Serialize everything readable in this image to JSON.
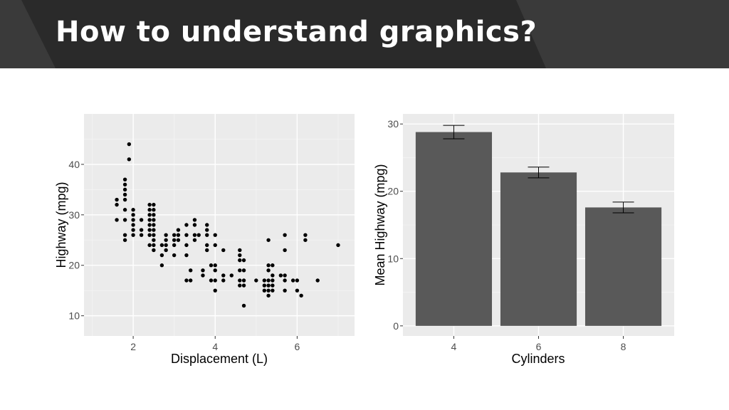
{
  "slide": {
    "title": "How to understand graphics?"
  },
  "colors": {
    "header_dark": "#2a2a2a",
    "header_mid": "#3a3a3a",
    "panel": "#ebebeb",
    "grid": "#ffffff",
    "point": "#000000",
    "bar": "#595959"
  },
  "chart_data": [
    {
      "type": "scatter",
      "xlabel": "Displacement (L)",
      "ylabel": "Highway (mpg)",
      "xlim": [
        0.8,
        7.4
      ],
      "ylim": [
        6,
        50
      ],
      "xticks": [
        2,
        4,
        6
      ],
      "yticks": [
        10,
        20,
        30,
        40
      ],
      "grid": true,
      "points": [
        [
          1.6,
          33
        ],
        [
          1.6,
          32
        ],
        [
          1.6,
          29
        ],
        [
          1.8,
          37
        ],
        [
          1.8,
          36
        ],
        [
          1.8,
          35
        ],
        [
          1.8,
          34
        ],
        [
          1.8,
          33
        ],
        [
          1.8,
          31
        ],
        [
          1.8,
          29
        ],
        [
          1.8,
          26
        ],
        [
          1.8,
          25
        ],
        [
          1.9,
          44
        ],
        [
          1.9,
          41
        ],
        [
          2.0,
          31
        ],
        [
          2.0,
          30
        ],
        [
          2.0,
          29
        ],
        [
          2.0,
          28
        ],
        [
          2.0,
          27
        ],
        [
          2.0,
          26
        ],
        [
          2.2,
          29
        ],
        [
          2.2,
          27
        ],
        [
          2.2,
          26
        ],
        [
          2.4,
          32
        ],
        [
          2.4,
          31
        ],
        [
          2.4,
          30
        ],
        [
          2.4,
          29
        ],
        [
          2.4,
          28
        ],
        [
          2.4,
          27
        ],
        [
          2.4,
          26
        ],
        [
          2.4,
          24
        ],
        [
          2.5,
          32
        ],
        [
          2.5,
          31
        ],
        [
          2.5,
          30
        ],
        [
          2.5,
          29
        ],
        [
          2.5,
          28
        ],
        [
          2.5,
          27
        ],
        [
          2.5,
          26
        ],
        [
          2.5,
          25
        ],
        [
          2.5,
          24
        ],
        [
          2.5,
          23
        ],
        [
          2.7,
          24
        ],
        [
          2.7,
          22
        ],
        [
          2.7,
          20
        ],
        [
          2.8,
          26
        ],
        [
          2.8,
          25
        ],
        [
          2.8,
          24
        ],
        [
          2.8,
          23
        ],
        [
          3.0,
          26
        ],
        [
          3.0,
          25
        ],
        [
          3.0,
          24
        ],
        [
          3.0,
          22
        ],
        [
          3.1,
          27
        ],
        [
          3.1,
          26
        ],
        [
          3.1,
          25
        ],
        [
          3.3,
          28
        ],
        [
          3.3,
          26
        ],
        [
          3.3,
          24
        ],
        [
          3.3,
          22
        ],
        [
          3.3,
          17
        ],
        [
          3.4,
          19
        ],
        [
          3.4,
          17
        ],
        [
          3.5,
          29
        ],
        [
          3.5,
          28
        ],
        [
          3.5,
          26
        ],
        [
          3.5,
          25
        ],
        [
          3.6,
          26
        ],
        [
          3.7,
          19
        ],
        [
          3.7,
          18
        ],
        [
          3.8,
          28
        ],
        [
          3.8,
          27
        ],
        [
          3.8,
          26
        ],
        [
          3.8,
          24
        ],
        [
          3.8,
          23
        ],
        [
          3.9,
          20
        ],
        [
          3.9,
          17
        ],
        [
          4.0,
          26
        ],
        [
          4.0,
          24
        ],
        [
          4.0,
          20
        ],
        [
          4.0,
          19
        ],
        [
          4.0,
          17
        ],
        [
          4.0,
          15
        ],
        [
          4.2,
          23
        ],
        [
          4.2,
          18
        ],
        [
          4.2,
          17
        ],
        [
          4.4,
          18
        ],
        [
          4.6,
          23
        ],
        [
          4.6,
          22
        ],
        [
          4.6,
          21
        ],
        [
          4.6,
          19
        ],
        [
          4.6,
          17
        ],
        [
          4.6,
          16
        ],
        [
          4.7,
          21
        ],
        [
          4.7,
          19
        ],
        [
          4.7,
          17
        ],
        [
          4.7,
          16
        ],
        [
          4.7,
          12
        ],
        [
          5.0,
          17
        ],
        [
          5.2,
          17
        ],
        [
          5.2,
          16
        ],
        [
          5.2,
          15
        ],
        [
          5.3,
          25
        ],
        [
          5.3,
          20
        ],
        [
          5.3,
          19
        ],
        [
          5.3,
          17
        ],
        [
          5.3,
          16
        ],
        [
          5.3,
          15
        ],
        [
          5.3,
          14
        ],
        [
          5.4,
          20
        ],
        [
          5.4,
          18
        ],
        [
          5.4,
          17
        ],
        [
          5.4,
          16
        ],
        [
          5.4,
          15
        ],
        [
          5.6,
          18
        ],
        [
          5.7,
          26
        ],
        [
          5.7,
          23
        ],
        [
          5.7,
          18
        ],
        [
          5.7,
          17
        ],
        [
          5.7,
          15
        ],
        [
          5.9,
          17
        ],
        [
          6.0,
          17
        ],
        [
          6.0,
          15
        ],
        [
          6.1,
          14
        ],
        [
          6.2,
          26
        ],
        [
          6.2,
          25
        ],
        [
          6.5,
          17
        ],
        [
          7.0,
          24
        ]
      ]
    },
    {
      "type": "bar",
      "xlabel": "Cylinders",
      "ylabel": "Mean Highway (mpg)",
      "categories": [
        "4",
        "6",
        "8"
      ],
      "values": [
        28.8,
        22.8,
        17.6
      ],
      "error_low": [
        27.8,
        22.0,
        16.8
      ],
      "error_high": [
        29.8,
        23.6,
        18.4
      ],
      "ylim": [
        -1.5,
        31.5
      ],
      "yticks": [
        0,
        10,
        20,
        30
      ],
      "grid": true
    }
  ]
}
